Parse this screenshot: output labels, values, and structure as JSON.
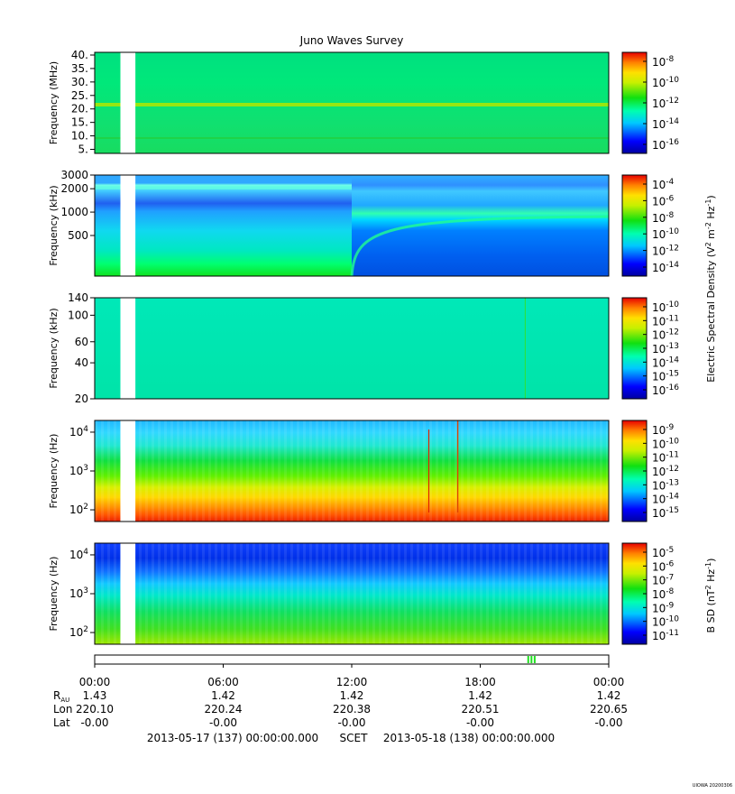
{
  "title": "Juno Waves Survey",
  "chart_data": [
    {
      "type": "heatmap",
      "ylabel": "Frequency (MHz)",
      "scale": "linear",
      "ylim": [
        3.5,
        41
      ],
      "yticks": [
        {
          "value": 5,
          "label": "5."
        },
        {
          "value": 10,
          "label": "10."
        },
        {
          "value": 15,
          "label": "15."
        },
        {
          "value": 20,
          "label": "20."
        },
        {
          "value": 25,
          "label": "25."
        },
        {
          "value": 30,
          "label": "30."
        },
        {
          "value": 35,
          "label": "35."
        },
        {
          "value": 40,
          "label": "40."
        }
      ],
      "colorbar": {
        "label": "",
        "ticks": [
          {
            "mantissa": "10",
            "exp": "-8"
          },
          {
            "mantissa": "10",
            "exp": "-10"
          },
          {
            "mantissa": "10",
            "exp": "-12"
          },
          {
            "mantissa": "10",
            "exp": "-14"
          },
          {
            "mantissa": "10",
            "exp": "-16"
          }
        ]
      }
    },
    {
      "type": "heatmap",
      "ylabel": "Frequency (kHz)",
      "scale": "log",
      "ylim": [
        150,
        3000
      ],
      "yticks": [
        {
          "value": 500,
          "label": "500"
        },
        {
          "value": 1000,
          "label": "1000"
        },
        {
          "value": 2000,
          "label": "2000"
        },
        {
          "value": 3000,
          "label": "3000"
        }
      ],
      "colorbar": {
        "label": "",
        "ticks": [
          {
            "mantissa": "10",
            "exp": "-4"
          },
          {
            "mantissa": "10",
            "exp": "-6"
          },
          {
            "mantissa": "10",
            "exp": "-8"
          },
          {
            "mantissa": "10",
            "exp": "-10"
          },
          {
            "mantissa": "10",
            "exp": "-12"
          },
          {
            "mantissa": "10",
            "exp": "-14"
          }
        ]
      }
    },
    {
      "type": "heatmap",
      "ylabel": "Frequency (kHz)",
      "scale": "log",
      "ylim": [
        20,
        140
      ],
      "yticks": [
        {
          "value": 20,
          "label": "20"
        },
        {
          "value": 40,
          "label": "40"
        },
        {
          "value": 60,
          "label": "60"
        },
        {
          "value": 100,
          "label": "100"
        },
        {
          "value": 140,
          "label": "140"
        }
      ],
      "colorbar": {
        "label": "",
        "ticks": [
          {
            "mantissa": "10",
            "exp": "-10"
          },
          {
            "mantissa": "10",
            "exp": "-11"
          },
          {
            "mantissa": "10",
            "exp": "-12"
          },
          {
            "mantissa": "10",
            "exp": "-13"
          },
          {
            "mantissa": "10",
            "exp": "-14"
          },
          {
            "mantissa": "10",
            "exp": "-15"
          },
          {
            "mantissa": "10",
            "exp": "-16"
          }
        ]
      }
    },
    {
      "type": "heatmap",
      "ylabel": "Frequency (Hz)",
      "scale": "log",
      "ylim": [
        50,
        20000
      ],
      "yticks": [
        {
          "value": 100,
          "mantissa": "10",
          "exp": "2"
        },
        {
          "value": 1000,
          "mantissa": "10",
          "exp": "3"
        },
        {
          "value": 10000,
          "mantissa": "10",
          "exp": "4"
        }
      ],
      "colorbar": {
        "label": "",
        "ticks": [
          {
            "mantissa": "10",
            "exp": "-9"
          },
          {
            "mantissa": "10",
            "exp": "-10"
          },
          {
            "mantissa": "10",
            "exp": "-11"
          },
          {
            "mantissa": "10",
            "exp": "-12"
          },
          {
            "mantissa": "10",
            "exp": "-13"
          },
          {
            "mantissa": "10",
            "exp": "-14"
          },
          {
            "mantissa": "10",
            "exp": "-15"
          }
        ]
      }
    },
    {
      "type": "heatmap",
      "ylabel": "Frequency (Hz)",
      "scale": "log",
      "ylim": [
        50,
        20000
      ],
      "yticks": [
        {
          "value": 100,
          "mantissa": "10",
          "exp": "2"
        },
        {
          "value": 1000,
          "mantissa": "10",
          "exp": "3"
        },
        {
          "value": 10000,
          "mantissa": "10",
          "exp": "4"
        }
      ],
      "colorbar": {
        "label": "B SD (nT² Hz⁻¹)",
        "ticks": [
          {
            "mantissa": "10",
            "exp": "-5"
          },
          {
            "mantissa": "10",
            "exp": "-6"
          },
          {
            "mantissa": "10",
            "exp": "-7"
          },
          {
            "mantissa": "10",
            "exp": "-8"
          },
          {
            "mantissa": "10",
            "exp": "-9"
          },
          {
            "mantissa": "10",
            "exp": "-10"
          },
          {
            "mantissa": "10",
            "exp": "-11"
          }
        ]
      }
    }
  ],
  "shared_colorbar_label": "Electric Spectral Density (V² m⁻² Hz⁻¹)",
  "time_axis": {
    "ticks": [
      "00:00",
      "06:00",
      "12:00",
      "18:00",
      "00:00"
    ],
    "rows": [
      {
        "label": "R",
        "sub": "AU",
        "values": [
          "1.43",
          "1.42",
          "1.42",
          "1.42",
          "1.42"
        ]
      },
      {
        "label": "Lon",
        "sub": "",
        "values": [
          "220.10",
          "220.24",
          "220.38",
          "220.51",
          "220.65"
        ]
      },
      {
        "label": "Lat",
        "sub": "",
        "values": [
          "-0.00",
          "-0.00",
          "-0.00",
          "-0.00",
          "-0.00"
        ]
      }
    ]
  },
  "footer": {
    "start": "2013-05-17 (137) 00:00:00.000",
    "scet": "SCET",
    "end": "2013-05-18 (138) 00:00:00.000"
  },
  "credit": "UIOWA 20200306",
  "data_gap": {
    "start_hour": 1.2,
    "end_hour": 1.9
  },
  "event_marks_hours": [
    20.2,
    20.35,
    20.5
  ]
}
